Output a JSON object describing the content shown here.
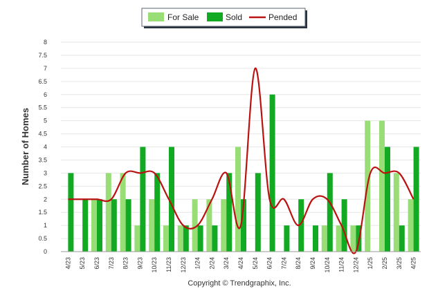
{
  "chart_data": {
    "type": "bar",
    "categories": [
      "4/23",
      "5/23",
      "6/23",
      "7/23",
      "8/23",
      "9/23",
      "10/23",
      "11/23",
      "12/23",
      "1/24",
      "2/24",
      "3/24",
      "4/24",
      "5/24",
      "6/24",
      "7/24",
      "8/24",
      "9/24",
      "10/24",
      "11/24",
      "12/24",
      "1/25",
      "2/25",
      "3/25",
      "4/25"
    ],
    "series": [
      {
        "name": "For Sale",
        "type": "bar",
        "color": "#99dd77",
        "values": [
          0,
          0,
          2,
          3,
          3,
          1,
          2,
          1,
          1,
          2,
          2,
          2,
          4,
          0,
          0,
          0,
          0,
          0,
          1,
          1,
          1,
          5,
          5,
          3,
          2
        ]
      },
      {
        "name": "Sold",
        "type": "bar",
        "color": "#11aa22",
        "values": [
          3,
          2,
          2,
          2,
          2,
          4,
          3,
          4,
          1,
          1,
          1,
          3,
          2,
          3,
          6,
          1,
          2,
          1,
          3,
          2,
          1,
          0,
          4,
          1,
          4
        ]
      },
      {
        "name": "Pended",
        "type": "line",
        "color": "#bb1111",
        "values": [
          2,
          2,
          2,
          2,
          3,
          3,
          3,
          2,
          1,
          1,
          2,
          3,
          1,
          7,
          2,
          2,
          1,
          2,
          2,
          1,
          0,
          3,
          3,
          3,
          2
        ]
      }
    ],
    "xlabel": "",
    "ylabel": "Number of Homes",
    "ylim": [
      0,
      8
    ],
    "yticks": [
      "0",
      "0.5",
      "1",
      "1.5",
      "2",
      "2.5",
      "3",
      "3.5",
      "4",
      "4.5",
      "5",
      "5.5",
      "6",
      "6.5",
      "7",
      "7.5",
      "8"
    ],
    "grid": true,
    "legend_placement": "top-center"
  },
  "footer": "Copyright © Trendgraphix, Inc."
}
